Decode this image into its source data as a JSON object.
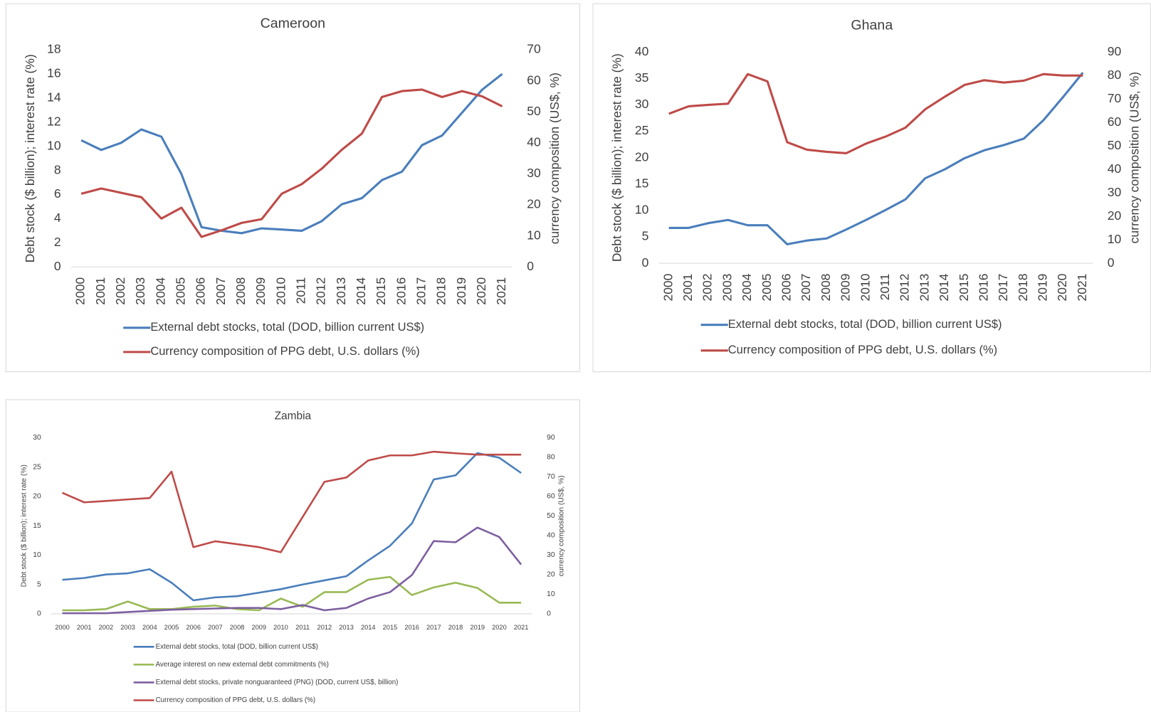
{
  "chart_data": [
    {
      "type": "line",
      "title": "Cameroon",
      "y_label": "Debt stock ($ billion); interest rate (%)",
      "y2_label": "currency composition (US$, %)",
      "categories": [
        "2000",
        "2001",
        "2002",
        "2003",
        "2004",
        "2005",
        "2006",
        "2007",
        "2008",
        "2009",
        "2010",
        "2011",
        "2012",
        "2013",
        "2014",
        "2015",
        "2016",
        "2017",
        "2018",
        "2019",
        "2020",
        "2021"
      ],
      "ylim": [
        0,
        18
      ],
      "yticks": [
        0,
        2,
        4,
        6,
        8,
        10,
        12,
        14,
        16,
        18
      ],
      "y2lim": [
        0,
        70
      ],
      "y2ticks": [
        0,
        10,
        20,
        30,
        40,
        50,
        60,
        70
      ],
      "legend": "bottom",
      "series": [
        {
          "name": "External debt stocks, total (DOD, billion current US$)",
          "color": "#4a7ebb",
          "values": [
            10.5,
            9.7,
            10.3,
            11.4,
            10.8,
            7.7,
            3.3,
            3.0,
            2.8,
            3.2,
            3.1,
            3.0,
            3.8,
            5.2,
            5.7,
            7.2,
            7.9,
            10.1,
            10.9,
            12.8,
            14.7,
            16.0
          ]
        },
        {
          "name": "Currency composition of PPG debt, U.S. dollars (%)",
          "color": "#be4b48",
          "axis": "y2",
          "values": [
            23.6,
            25.3,
            23.9,
            22.5,
            15.6,
            19.1,
            9.7,
            11.8,
            14.2,
            15.4,
            23.6,
            26.7,
            31.7,
            37.8,
            43.0,
            54.8,
            56.7,
            57.2,
            54.8,
            56.7,
            55.0,
            51.8
          ]
        }
      ]
    },
    {
      "type": "line",
      "title": "Ghana",
      "y_label": "Debt stock ($ billion); interest rate (%)",
      "y2_label": "currency composition (US$, %)",
      "categories": [
        "2000",
        "2001",
        "2002",
        "2003",
        "2004",
        "2005",
        "2006",
        "2007",
        "2008",
        "2009",
        "2010",
        "2011",
        "2012",
        "2013",
        "2014",
        "2015",
        "2016",
        "2017",
        "2018",
        "2019",
        "2020",
        "2021"
      ],
      "ylim": [
        0,
        40
      ],
      "yticks": [
        0,
        5,
        10,
        15,
        20,
        25,
        30,
        35,
        40
      ],
      "y2lim": [
        0,
        90
      ],
      "y2ticks": [
        0,
        10,
        20,
        30,
        40,
        50,
        60,
        70,
        80,
        90
      ],
      "legend": "bottom",
      "series": [
        {
          "name": "External debt stocks, total (DOD, billion current US$)",
          "color": "#4a7ebb",
          "values": [
            6.7,
            6.7,
            7.6,
            8.2,
            7.2,
            7.2,
            3.6,
            4.3,
            4.7,
            6.4,
            8.2,
            10.1,
            12.1,
            16.1,
            17.8,
            19.9,
            21.4,
            22.4,
            23.6,
            27.1,
            31.5,
            36.1
          ]
        },
        {
          "name": "Currency composition of PPG debt, U.S. dollars (%)",
          "color": "#be4b48",
          "axis": "y2",
          "values": [
            63.7,
            66.9,
            67.5,
            68.0,
            80.6,
            77.5,
            51.6,
            48.4,
            47.5,
            46.9,
            51.0,
            54.0,
            57.8,
            65.6,
            71.0,
            76.0,
            78.0,
            77.0,
            77.8,
            80.6,
            80.0,
            80.0
          ]
        }
      ]
    },
    {
      "type": "line",
      "title": "Zambia",
      "y_label": "Debt stock ($ billion); interest rate (%)",
      "y2_label": "currency composition (US$, %)",
      "categories": [
        "2000",
        "2001",
        "2002",
        "2003",
        "2004",
        "2005",
        "2006",
        "2007",
        "2008",
        "2009",
        "2010",
        "2011",
        "2012",
        "2013",
        "2014",
        "2015",
        "2016",
        "2017",
        "2018",
        "2019",
        "2020",
        "2021"
      ],
      "ylim": [
        0,
        30
      ],
      "yticks": [
        0,
        5,
        10,
        15,
        20,
        25,
        30
      ],
      "y2lim": [
        0,
        90
      ],
      "y2ticks": [
        0,
        10,
        20,
        30,
        40,
        50,
        60,
        70,
        80,
        90
      ],
      "legend": "bottom",
      "series": [
        {
          "name": "External debt stocks, total (DOD, billion current US$)",
          "color": "#4a7ebb",
          "values": [
            5.8,
            6.1,
            6.7,
            6.9,
            7.6,
            5.3,
            2.3,
            2.8,
            3.0,
            3.6,
            4.2,
            5.0,
            5.7,
            6.4,
            9.1,
            11.6,
            15.4,
            22.9,
            23.6,
            27.4,
            26.6,
            24.0
          ]
        },
        {
          "name": "Average interest on new external debt commitments (%)",
          "color": "#98b954",
          "values": [
            0.6,
            0.6,
            0.8,
            2.1,
            0.8,
            0.8,
            1.2,
            1.4,
            0.8,
            0.6,
            2.6,
            1.2,
            3.7,
            3.7,
            5.8,
            6.3,
            3.2,
            4.5,
            5.3,
            4.4,
            1.9,
            1.9
          ]
        },
        {
          "name": "External debt stocks, private nonguaranteed (PNG) (DOD, current US$, billion)",
          "color": "#7d5fa0",
          "values": [
            0.1,
            0.1,
            0.1,
            0.3,
            0.5,
            0.7,
            0.8,
            0.9,
            1.0,
            1.0,
            0.8,
            1.5,
            0.6,
            1.0,
            2.6,
            3.7,
            6.6,
            12.4,
            12.2,
            14.7,
            13.1,
            8.4
          ]
        },
        {
          "name": "Currency composition of PPG debt, U.S. dollars (%)",
          "color": "#be4b48",
          "axis": "y2",
          "values": [
            61.9,
            57.0,
            57.7,
            58.5,
            59.2,
            72.7,
            34.1,
            37.1,
            35.6,
            34.1,
            31.5,
            49.5,
            67.5,
            69.7,
            78.4,
            81.0,
            81.0,
            82.9,
            82.1,
            81.4,
            81.4,
            81.4
          ]
        }
      ]
    }
  ]
}
